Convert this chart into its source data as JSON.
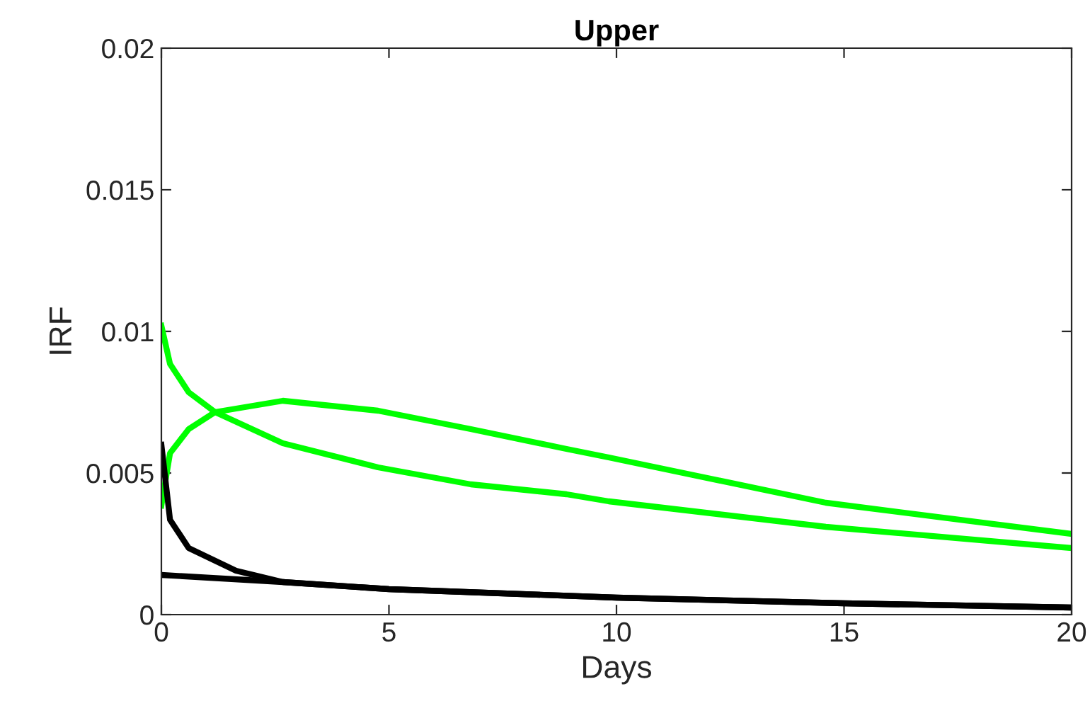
{
  "chart_data": {
    "type": "line",
    "title": "Upper",
    "xlabel": "Days",
    "ylabel": "IRF",
    "xlim": [
      0,
      20
    ],
    "ylim": [
      0,
      0.02
    ],
    "xticks": [
      0,
      5,
      10,
      15,
      20
    ],
    "yticks": [
      0,
      0.005,
      0.01,
      0.015,
      0.02
    ],
    "grid": false,
    "marker": "none",
    "line_style": "solid",
    "series": [
      {
        "color": "#00ff00",
        "x": [
          0,
          0.19,
          0.6,
          1.18,
          2.67,
          4.76,
          6.8,
          8.9,
          9.83,
          14.6,
          20
        ],
        "values": [
          0.0102,
          0.00885,
          0.00785,
          0.00715,
          0.00605,
          0.0052,
          0.0046,
          0.00425,
          0.004,
          0.0031,
          0.00235
        ]
      },
      {
        "color": "#00ff00",
        "x": [
          0,
          0.19,
          0.6,
          1.18,
          2.67,
          4.76,
          6.8,
          8.9,
          9.83,
          14.6,
          20
        ],
        "values": [
          0.00385,
          0.0057,
          0.00655,
          0.00715,
          0.00755,
          0.0072,
          0.00655,
          0.00585,
          0.00555,
          0.00395,
          0.00285
        ]
      },
      {
        "color": "#000000",
        "x": [
          0,
          0.19,
          0.6,
          1.64,
          2.67,
          5,
          10,
          15,
          20
        ],
        "values": [
          0.006,
          0.00335,
          0.00235,
          0.00155,
          0.00115,
          0.0009,
          0.0006,
          0.0004,
          0.00025
        ]
      },
      {
        "color": "#000000",
        "x": [
          0,
          2.67,
          5,
          10,
          15,
          20
        ],
        "values": [
          0.0014,
          0.00115,
          0.0009,
          0.0006,
          0.0004,
          0.00025
        ]
      }
    ]
  }
}
